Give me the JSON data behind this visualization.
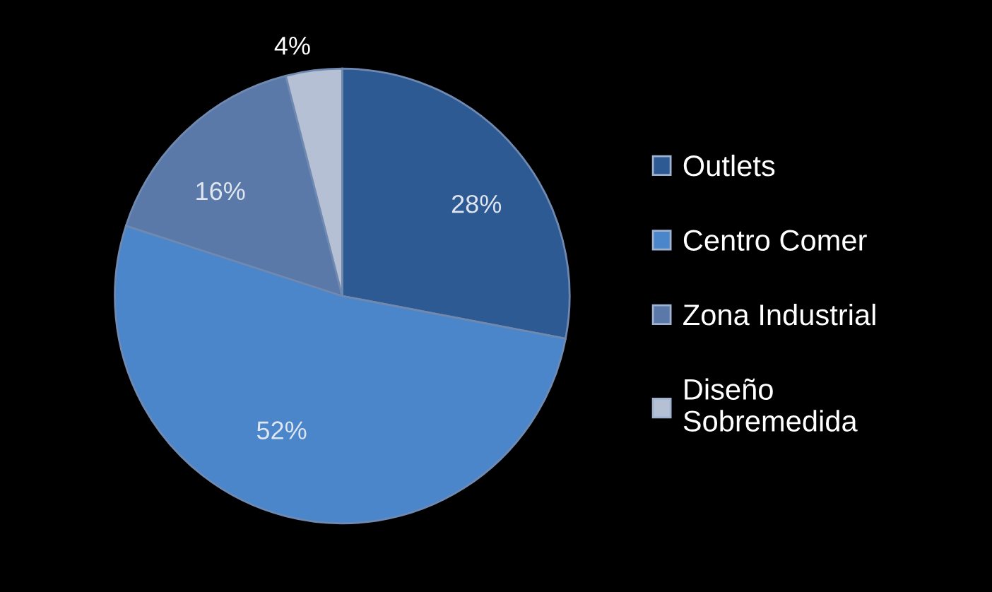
{
  "chart_data": {
    "type": "pie",
    "categories": [
      "Outlets",
      "Centro Comer",
      "Zona Industrial",
      "Diseño Sobremedida"
    ],
    "values": [
      28,
      52,
      16,
      4
    ],
    "colors": [
      "#2e5a93",
      "#4a86c9",
      "#5a79a8",
      "#b5c0d4"
    ],
    "value_labels": [
      "28%",
      "52%",
      "16%",
      "4%"
    ],
    "legend": "right"
  }
}
